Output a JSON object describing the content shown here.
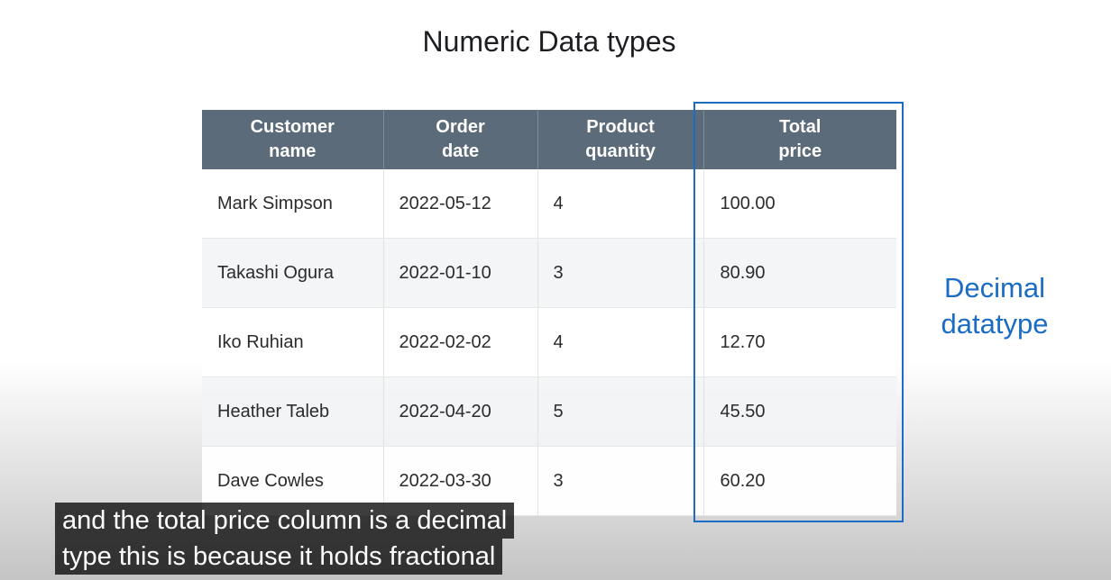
{
  "slide": {
    "title": "Numeric Data types",
    "callout_line1": "Decimal",
    "callout_line2": "datatype"
  },
  "table": {
    "headers": [
      [
        "Customer",
        "name"
      ],
      [
        "Order",
        "date"
      ],
      [
        "Product",
        "quantity"
      ],
      [
        "Total",
        "price"
      ]
    ],
    "rows": [
      [
        "Mark Simpson",
        "2022-05-12",
        "4",
        "100.00"
      ],
      [
        "Takashi Ogura",
        "2022-01-10",
        "3",
        "80.90"
      ],
      [
        "Iko Ruhian",
        "2022-02-02",
        "4",
        "12.70"
      ],
      [
        "Heather Taleb",
        "2022-04-20",
        "5",
        "45.50"
      ],
      [
        "Dave Cowles",
        "2022-03-30",
        "3",
        "60.20"
      ]
    ]
  },
  "captions": {
    "line1": "and the total price column is a decimal",
    "line2": "type this is because it holds fractional"
  },
  "colors": {
    "header_bg": "#5b6b7a",
    "highlight": "#1a6cc4"
  }
}
